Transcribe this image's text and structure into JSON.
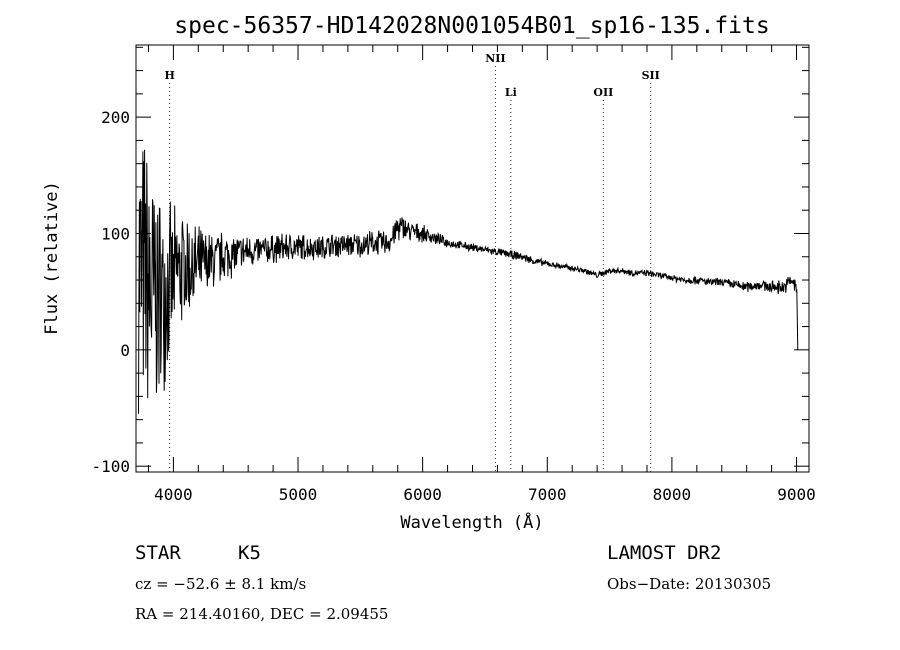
{
  "chart_data": {
    "type": "line",
    "title": "spec-56357-HD142028N001054B01_sp16-135.fits",
    "xlabel": "Wavelength (Å)",
    "ylabel": "Flux (relative)",
    "xlim": [
      3700,
      9100
    ],
    "ylim": [
      -105,
      262
    ],
    "xticks": [
      4000,
      5000,
      6000,
      7000,
      8000,
      9000
    ],
    "yticks": [
      -100,
      0,
      100,
      200
    ],
    "grid": false,
    "line_ids": [
      {
        "label": "H",
        "wavelength": 3970
      },
      {
        "label": "NII",
        "wavelength": 6584
      },
      {
        "label": "Li",
        "wavelength": 6708
      },
      {
        "label": "OII",
        "wavelength": 7450
      },
      {
        "label": "SII",
        "wavelength": 7830
      }
    ],
    "series": [
      {
        "x": [
          3720,
          3760,
          3800,
          3850,
          3900,
          3950,
          4000,
          4050,
          4100,
          4150,
          4200,
          4300,
          4400,
          4500,
          4600,
          4700,
          4800,
          4900,
          5000,
          5100,
          5200,
          5300,
          5400,
          5500,
          5600,
          5700,
          5750,
          5800,
          5850,
          5900,
          6000,
          6100,
          6200,
          6300,
          6400,
          6500,
          6600,
          6700,
          6800,
          6900,
          7000,
          7100,
          7200,
          7300,
          7400,
          7450,
          7500,
          7600,
          7700,
          7800,
          7900,
          8000,
          8100,
          8200,
          8300,
          8400,
          8500,
          8600,
          8700,
          8800,
          8900,
          8960,
          9000,
          9010
        ],
        "y": [
          80,
          60,
          50,
          45,
          45,
          55,
          60,
          70,
          70,
          70,
          72,
          75,
          80,
          82,
          85,
          85,
          87,
          88,
          88,
          88,
          88,
          90,
          90,
          90,
          92,
          92,
          95,
          105,
          105,
          102,
          100,
          96,
          92,
          90,
          88,
          86,
          84,
          82,
          80,
          76,
          74,
          72,
          70,
          68,
          64,
          66,
          68,
          68,
          66,
          66,
          64,
          62,
          60,
          60,
          58,
          58,
          56,
          54,
          56,
          54,
          54,
          60,
          52,
          0
        ],
        "noise_amp": [
          140,
          140,
          160,
          120,
          100,
          80,
          65,
          60,
          55,
          45,
          38,
          30,
          25,
          20,
          16,
          15,
          14,
          14,
          14,
          12,
          12,
          12,
          12,
          12,
          12,
          12,
          12,
          14,
          12,
          10,
          8,
          6,
          5,
          4,
          4,
          4,
          4,
          4,
          4,
          4,
          3,
          3,
          3,
          3,
          3,
          3,
          3,
          3,
          3,
          3,
          3,
          3,
          4,
          4,
          4,
          4,
          5,
          5,
          5,
          6,
          7,
          7,
          8,
          0
        ]
      }
    ]
  },
  "info": {
    "object_class": "STAR",
    "subclass": "K5",
    "survey": "LAMOST DR2",
    "cz": "cz = −52.6 ± 8.1 km/s",
    "obs_date": "Obs−Date: 20130305",
    "radec": "RA = 214.40160, DEC =   2.09455"
  }
}
